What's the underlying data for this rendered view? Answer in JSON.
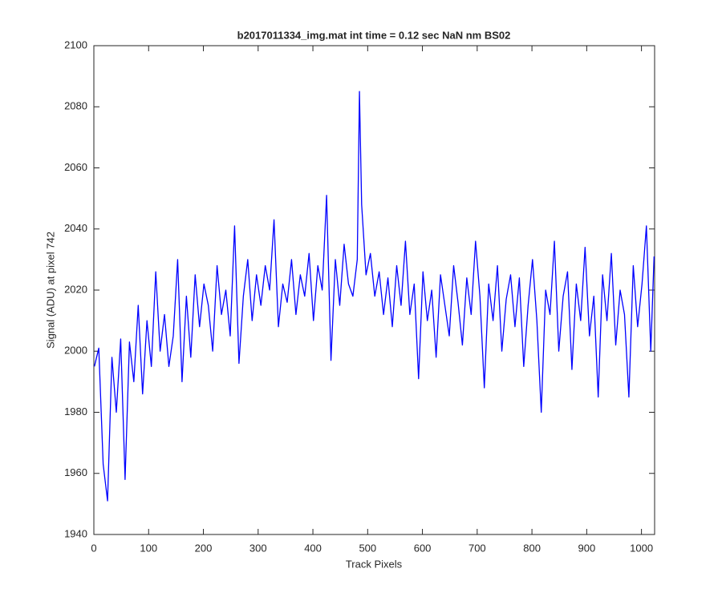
{
  "chart_data": {
    "type": "line",
    "title": "b2017011334_img.mat int time = 0.12 sec  NaN nm BS02",
    "xlabel": "Track Pixels",
    "ylabel": "Signal (ADU) at pixel 742",
    "xlim": [
      0,
      1024
    ],
    "ylim": [
      1940,
      2100
    ],
    "xticks": [
      0,
      100,
      200,
      300,
      400,
      500,
      600,
      700,
      800,
      900,
      1000
    ],
    "yticks": [
      1940,
      1960,
      1980,
      2000,
      2020,
      2040,
      2060,
      2080,
      2100
    ],
    "grid": false,
    "x": [
      1,
      9,
      17,
      25,
      33,
      41,
      49,
      57,
      65,
      73,
      81,
      89,
      97,
      105,
      113,
      121,
      129,
      137,
      145,
      153,
      161,
      169,
      177,
      185,
      193,
      201,
      209,
      217,
      225,
      233,
      241,
      249,
      257,
      265,
      273,
      281,
      289,
      297,
      305,
      313,
      321,
      329,
      337,
      345,
      353,
      361,
      369,
      377,
      385,
      393,
      401,
      409,
      417,
      425,
      433,
      441,
      449,
      457,
      465,
      473,
      481,
      485,
      489,
      497,
      505,
      513,
      521,
      529,
      537,
      545,
      553,
      561,
      569,
      577,
      585,
      593,
      601,
      609,
      617,
      625,
      633,
      641,
      649,
      657,
      665,
      673,
      681,
      689,
      697,
      705,
      713,
      721,
      729,
      737,
      745,
      753,
      761,
      769,
      777,
      785,
      793,
      801,
      809,
      817,
      825,
      833,
      841,
      849,
      857,
      865,
      873,
      881,
      889,
      897,
      905,
      913,
      921,
      929,
      937,
      945,
      953,
      961,
      969,
      977,
      985,
      993,
      1001,
      1009,
      1017,
      1023
    ],
    "series": [
      {
        "name": "Signal",
        "color": "#0000ff",
        "values": [
          1995,
          2001,
          1963,
          1951,
          1998,
          1980,
          2004,
          1958,
          2003,
          1990,
          2015,
          1986,
          2010,
          1995,
          2026,
          2000,
          2012,
          1995,
          2005,
          2030,
          1990,
          2018,
          1998,
          2025,
          2008,
          2022,
          2015,
          2000,
          2028,
          2012,
          2020,
          2005,
          2041,
          1996,
          2018,
          2030,
          2010,
          2025,
          2015,
          2028,
          2020,
          2043,
          2008,
          2022,
          2016,
          2030,
          2012,
          2025,
          2018,
          2032,
          2010,
          2028,
          2020,
          2051,
          1997,
          2030,
          2015,
          2035,
          2022,
          2018,
          2030,
          2085,
          2048,
          2025,
          2032,
          2018,
          2026,
          2012,
          2024,
          2008,
          2028,
          2015,
          2036,
          2012,
          2022,
          1991,
          2026,
          2010,
          2020,
          1998,
          2025,
          2015,
          2005,
          2028,
          2016,
          2002,
          2024,
          2012,
          2036,
          2018,
          1988,
          2022,
          2010,
          2028,
          2000,
          2017,
          2025,
          2008,
          2024,
          1995,
          2015,
          2030,
          2010,
          1980,
          2020,
          2012,
          2036,
          2000,
          2018,
          2026,
          1994,
          2022,
          2010,
          2034,
          2005,
          2018,
          1985,
          2025,
          2010,
          2032,
          2002,
          2020,
          2012,
          1985,
          2028,
          2008,
          2022,
          2041,
          2000,
          2031
        ]
      }
    ]
  }
}
